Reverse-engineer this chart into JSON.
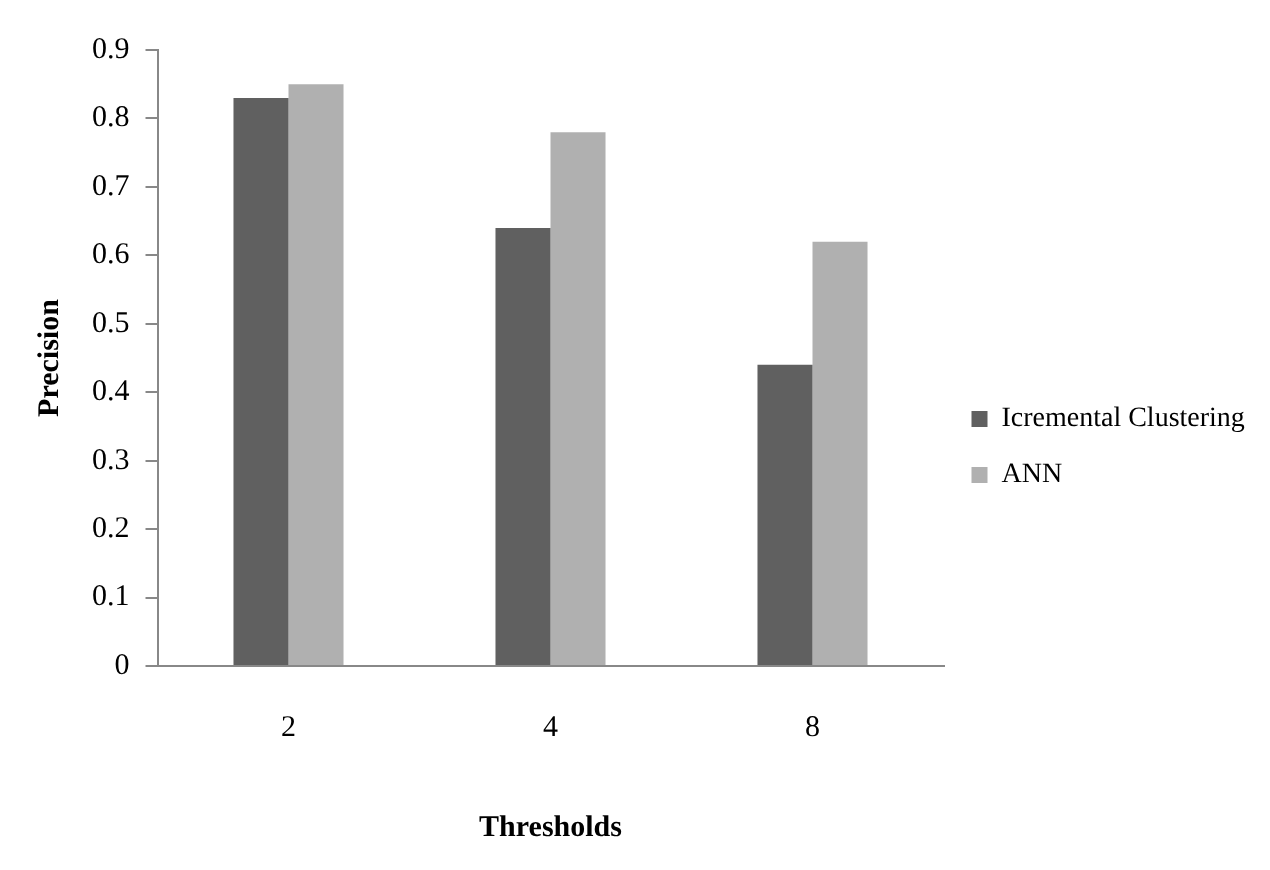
{
  "chart_data": {
    "type": "bar",
    "xlabel": "Thresholds",
    "ylabel": "Precision",
    "categories": [
      "2",
      "4",
      "8"
    ],
    "series": [
      {
        "name": "Icremental Clustering",
        "color": "#606060",
        "values": [
          0.83,
          0.64,
          0.44
        ]
      },
      {
        "name": "ANN",
        "color": "#b0b0b0",
        "values": [
          0.85,
          0.78,
          0.62
        ]
      }
    ],
    "ylim": [
      0,
      0.9
    ],
    "yticks": [
      0,
      0.1,
      0.2,
      0.3,
      0.4,
      0.5,
      0.6,
      0.7,
      0.8,
      0.9
    ],
    "grid": false,
    "legend": "right"
  }
}
